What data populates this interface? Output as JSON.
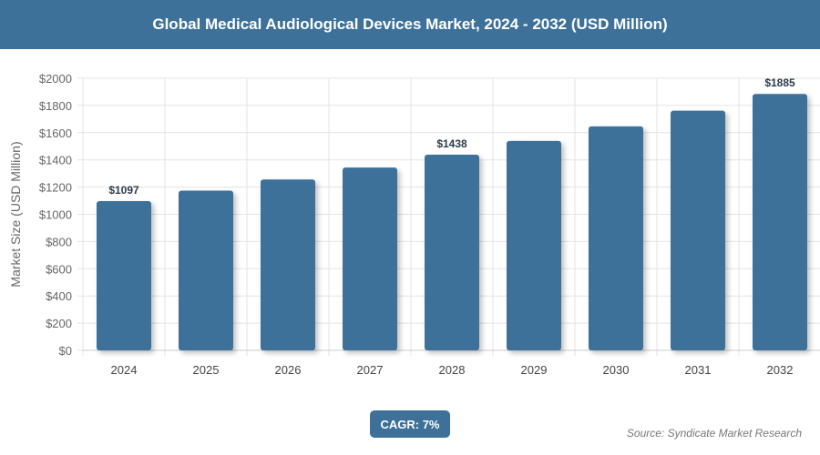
{
  "chart_data": {
    "type": "bar",
    "title": "Global Medical Audiological Devices Market, 2024 - 2032 (USD Million)",
    "xlabel": "",
    "ylabel": "Market Size (USD Million)",
    "categories": [
      "2024",
      "2025",
      "2026",
      "2027",
      "2028",
      "2029",
      "2030",
      "2031",
      "2032"
    ],
    "values": [
      1097,
      1174,
      1256,
      1344,
      1438,
      1539,
      1646,
      1762,
      1885
    ],
    "data_labels": {
      "0": "$1097",
      "4": "$1438",
      "8": "$1885"
    },
    "ylim": [
      0,
      2000
    ],
    "yticks": [
      0,
      200,
      400,
      600,
      800,
      1000,
      1200,
      1400,
      1600,
      1800,
      2000
    ],
    "ytick_prefix": "$",
    "grid": true,
    "bar_color": "#3d7199"
  },
  "cagr_label": "CAGR: 7%",
  "source": "Source: Syndicate Market Research"
}
